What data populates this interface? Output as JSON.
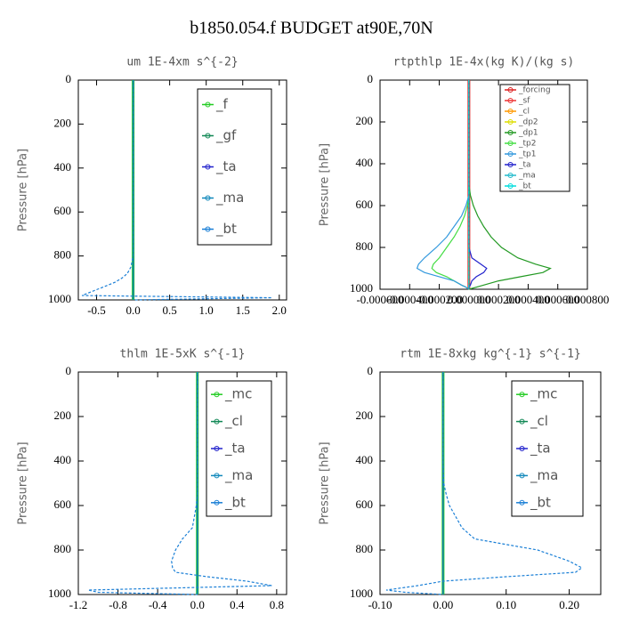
{
  "title": "b1850.054.f  BUDGET at90E,70N",
  "chart_data": [
    {
      "type": "line",
      "title": "um  1E-4xm s^{-2}",
      "ylabel": "Pressure [hPa]",
      "y": [
        0,
        100,
        200,
        300,
        400,
        500,
        550,
        600,
        650,
        700,
        750,
        800,
        850,
        880,
        900,
        920,
        940,
        960,
        980,
        990,
        1000
      ],
      "xlim": [
        -0.75,
        2.1
      ],
      "xticks": [
        {
          "value": -0.5,
          "label": "-0.5"
        },
        {
          "value": 0,
          "label": "0.0"
        },
        {
          "value": 0.5,
          "label": "0.5"
        },
        {
          "value": 1,
          "label": "1.0"
        },
        {
          "value": 1.5,
          "label": "1.5"
        },
        {
          "value": 2,
          "label": "2.0"
        }
      ],
      "ylim": [
        1000,
        0
      ],
      "yticks": [
        0,
        200,
        400,
        600,
        800,
        1000
      ],
      "series": [
        {
          "name": "_f",
          "color": "#22cc22",
          "values": [
            0,
            0,
            0,
            0,
            0,
            0,
            0,
            0,
            0,
            0,
            0,
            0,
            0,
            0,
            0,
            0,
            0,
            0,
            0,
            0,
            0
          ]
        },
        {
          "name": "_gf",
          "color": "#118855",
          "values": [
            0,
            0,
            0,
            0,
            0,
            0,
            0,
            0,
            0,
            0,
            0,
            0,
            0,
            0,
            0,
            0,
            0,
            0,
            0,
            0,
            0
          ]
        },
        {
          "name": "_ta",
          "color": "#2222cc",
          "values": [
            0,
            0,
            0,
            0,
            0,
            0,
            0,
            0,
            0,
            0,
            0,
            0,
            0,
            0,
            0,
            0,
            0,
            0,
            0,
            0,
            0
          ]
        },
        {
          "name": "_ma",
          "color": "#1188bb",
          "values": [
            0,
            0,
            0,
            0,
            0,
            0,
            0,
            0,
            0,
            0,
            0,
            0,
            0,
            0,
            0,
            0,
            0,
            0,
            0,
            0,
            0
          ]
        },
        {
          "name": "_bt",
          "color": "#1a7fd6",
          "values": [
            0,
            0,
            0,
            0,
            0,
            0,
            0,
            0,
            0,
            0,
            0,
            0,
            -0.03,
            -0.08,
            -0.15,
            -0.25,
            -0.4,
            -0.55,
            -0.7,
            1.9,
            0
          ]
        }
      ]
    },
    {
      "type": "line",
      "title": "rtpthlp  1E-4x(kg K)/(kg s)",
      "ylabel": "Pressure [hPa]",
      "y": [
        0,
        100,
        200,
        300,
        400,
        500,
        550,
        600,
        650,
        700,
        750,
        800,
        850,
        880,
        900,
        920,
        940,
        960,
        980,
        990,
        1000
      ],
      "xlim": [
        -0.0006,
        0.0008
      ],
      "xticks": [
        {
          "value": -0.0006,
          "label": "-0.000600"
        },
        {
          "value": -0.0004,
          "label": "-0.000400"
        },
        {
          "value": -0.0002,
          "label": "-0.000200"
        },
        {
          "value": 0,
          "label": "0.000000"
        },
        {
          "value": 0.0002,
          "label": "0.000200"
        },
        {
          "value": 0.0004,
          "label": "0.000400"
        },
        {
          "value": 0.0006,
          "label": "0.000600"
        },
        {
          "value": 0.0008,
          "label": "0.000800"
        }
      ],
      "ylim": [
        1000,
        0
      ],
      "yticks": [
        0,
        200,
        400,
        600,
        800,
        1000
      ],
      "series": [
        {
          "name": "_forcing",
          "color": "#dd2222",
          "values": [
            0,
            0,
            0,
            0,
            0,
            0,
            0,
            0,
            0,
            0,
            0,
            0,
            0,
            0,
            0,
            0,
            0,
            0,
            0,
            0,
            0
          ]
        },
        {
          "name": "_sf",
          "color": "#ee3333",
          "values": [
            0,
            0,
            0,
            0,
            0,
            0,
            0,
            0,
            0,
            0,
            0,
            0,
            0,
            0,
            0,
            0,
            0,
            0,
            0,
            0,
            0
          ]
        },
        {
          "name": "_cl",
          "color": "#ff9900",
          "values": [
            0,
            0,
            0,
            0,
            0,
            0,
            0,
            0,
            0,
            0,
            0,
            0,
            0,
            0,
            0,
            0,
            0,
            0,
            0,
            0,
            0
          ]
        },
        {
          "name": "_dp2",
          "color": "#dddd00",
          "values": [
            0,
            0,
            0,
            0,
            0,
            0,
            0,
            0,
            0,
            0,
            0,
            0,
            0,
            0,
            0,
            0,
            0,
            0,
            0,
            0,
            0
          ]
        },
        {
          "name": "_dp1",
          "color": "#229922",
          "values": [
            0,
            0,
            0,
            0,
            0,
            0,
            1e-05,
            3e-05,
            6e-05,
            0.0001,
            0.00015,
            0.00022,
            0.00033,
            0.00045,
            0.00055,
            0.0005,
            0.00035,
            0.0002,
            0.0001,
            5e-05,
            0
          ]
        },
        {
          "name": "_tp2",
          "color": "#44dd44",
          "values": [
            0,
            0,
            0,
            0,
            0,
            0,
            0,
            -1e-05,
            -3e-05,
            -6e-05,
            -0.0001,
            -0.00015,
            -0.0002,
            -0.00024,
            -0.00025,
            -0.00022,
            -0.00015,
            -0.0001,
            -5e-05,
            -2e-05,
            0
          ]
        },
        {
          "name": "_tp1",
          "color": "#3399dd",
          "values": [
            0,
            0,
            0,
            0,
            0,
            0,
            0,
            -2e-05,
            -5e-05,
            -0.0001,
            -0.00015,
            -0.00022,
            -0.0003,
            -0.00034,
            -0.00035,
            -0.0003,
            -0.0002,
            -0.0001,
            -5e-05,
            -2e-05,
            0
          ]
        },
        {
          "name": "_ta",
          "color": "#2222cc",
          "values": [
            0,
            0,
            0,
            0,
            0,
            0,
            0,
            0,
            0,
            0,
            0,
            0,
            2e-05,
            8e-05,
            0.00012,
            0.0001,
            5e-05,
            2e-05,
            1e-05,
            0,
            0
          ]
        },
        {
          "name": "_ma",
          "color": "#22bbcc",
          "values": [
            0,
            0,
            0,
            0,
            0,
            0,
            0,
            0,
            0,
            0,
            0,
            0,
            0,
            0,
            0,
            0,
            0,
            0,
            0,
            0,
            0
          ]
        },
        {
          "name": "_bt",
          "color": "#00dddd",
          "values": [
            0,
            0,
            0,
            0,
            0,
            0,
            0,
            0,
            0,
            0,
            0,
            0,
            0,
            0,
            0,
            0,
            0,
            0,
            0,
            0,
            0
          ]
        }
      ]
    },
    {
      "type": "line",
      "title": "thlm  1E-5xK s^{-1}",
      "ylabel": "Pressure [hPa]",
      "y": [
        0,
        100,
        200,
        300,
        400,
        500,
        550,
        600,
        650,
        700,
        750,
        800,
        850,
        880,
        900,
        920,
        940,
        960,
        980,
        990,
        1000
      ],
      "xlim": [
        -1.2,
        0.9
      ],
      "xticks": [
        -1.2,
        -0.8,
        -0.4,
        {
          "value": 0,
          "label": "0.0"
        },
        0.4,
        0.8
      ],
      "ylim": [
        1000,
        0
      ],
      "yticks": [
        0,
        200,
        400,
        600,
        800,
        1000
      ],
      "series": [
        {
          "name": "_mc",
          "color": "#22cc22",
          "values": [
            0,
            0,
            0,
            0,
            0,
            0,
            0,
            0,
            0,
            0,
            0,
            0,
            0,
            0,
            0,
            0,
            0,
            0,
            0,
            0,
            0
          ]
        },
        {
          "name": "_cl",
          "color": "#118855",
          "values": [
            0,
            0,
            0,
            0,
            0,
            0,
            0,
            0,
            0,
            0,
            0,
            0,
            0,
            0,
            0,
            0,
            0,
            0,
            0,
            0,
            0
          ]
        },
        {
          "name": "_ta",
          "color": "#2222cc",
          "values": [
            0,
            0,
            0,
            0,
            0,
            0,
            0,
            0,
            0,
            0,
            0,
            0,
            0,
            0,
            0,
            0,
            0,
            0,
            0,
            0,
            0
          ]
        },
        {
          "name": "_ma",
          "color": "#1188bb",
          "values": [
            0,
            0,
            0,
            0,
            0,
            0,
            0,
            0,
            0,
            0,
            0,
            0,
            0,
            0,
            0,
            0,
            0,
            0,
            0,
            0,
            0
          ]
        },
        {
          "name": "_bt",
          "color": "#1a7fd6",
          "values": [
            0,
            0,
            0,
            0,
            0,
            0,
            0,
            -0.01,
            -0.03,
            -0.05,
            -0.15,
            -0.22,
            -0.26,
            -0.25,
            -0.22,
            0.1,
            0.5,
            0.75,
            -1.1,
            -1.0,
            0
          ]
        }
      ]
    },
    {
      "type": "line",
      "title": "rtm  1E-8xkg kg^{-1} s^{-1}",
      "ylabel": "Pressure [hPa]",
      "y": [
        0,
        100,
        200,
        300,
        400,
        500,
        550,
        600,
        650,
        700,
        750,
        800,
        850,
        880,
        900,
        920,
        940,
        960,
        980,
        990,
        1000
      ],
      "xlim": [
        -0.1,
        0.25
      ],
      "xticks": [
        {
          "value": -0.1,
          "label": "-0.10"
        },
        {
          "value": 0,
          "label": "0.00"
        },
        {
          "value": 0.1,
          "label": "0.10"
        },
        {
          "value": 0.2,
          "label": "0.20"
        }
      ],
      "ylim": [
        1000,
        0
      ],
      "yticks": [
        0,
        200,
        400,
        600,
        800,
        1000
      ],
      "series": [
        {
          "name": "_mc",
          "color": "#22cc22",
          "values": [
            0,
            0,
            0,
            0,
            0,
            0,
            0,
            0,
            0,
            0,
            0,
            0,
            0,
            0,
            0,
            0,
            0,
            0,
            0,
            0,
            0
          ]
        },
        {
          "name": "_cl",
          "color": "#118855",
          "values": [
            0,
            0,
            0,
            0,
            0,
            0,
            0,
            0,
            0,
            0,
            0,
            0,
            0,
            0,
            0,
            0,
            0,
            0,
            0,
            0,
            0
          ]
        },
        {
          "name": "_ta",
          "color": "#2222cc",
          "values": [
            0,
            0,
            0,
            0,
            0,
            0,
            0,
            0,
            0,
            0,
            0,
            0,
            0,
            0,
            0,
            0,
            0,
            0,
            0,
            0,
            0
          ]
        },
        {
          "name": "_ma",
          "color": "#1188bb",
          "values": [
            0,
            0,
            0,
            0,
            0,
            0,
            0,
            0,
            0,
            0,
            0,
            0,
            0,
            0,
            0,
            0,
            0,
            0,
            0,
            0,
            0
          ]
        },
        {
          "name": "_bt",
          "color": "#1a7fd6",
          "values": [
            0,
            0,
            0,
            0,
            0,
            0.001,
            0.005,
            0.01,
            0.02,
            0.03,
            0.05,
            0.15,
            0.2,
            0.22,
            0.21,
            0.1,
            0,
            -0.04,
            -0.09,
            -0.06,
            0
          ]
        }
      ]
    }
  ]
}
